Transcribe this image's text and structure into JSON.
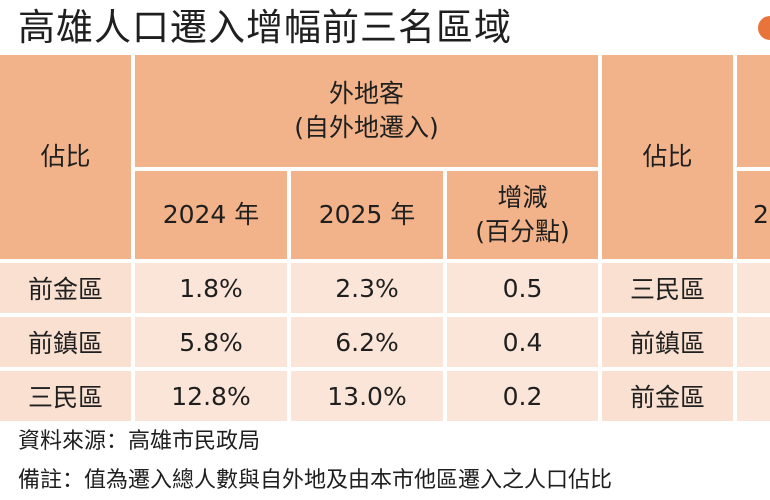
{
  "title": "高雄人口遷入增幅前三名區域",
  "table": {
    "group_header_line1": "外地客",
    "group_header_line2": "(自外地遷入)",
    "share_label": "佔比",
    "share_label_right": "佔比",
    "col_2024": "2024 年",
    "col_2025": "2025 年",
    "col_change_line1": "增減",
    "col_change_line2": "(百分點)",
    "right_partial_header": "2",
    "rows": [
      {
        "district": "前金區",
        "y2024": "1.8%",
        "y2025": "2.3%",
        "change": "0.5",
        "right_district": "三民區"
      },
      {
        "district": "前鎮區",
        "y2024": "5.8%",
        "y2025": "6.2%",
        "change": "0.4",
        "right_district": "前鎮區"
      },
      {
        "district": "三民區",
        "y2024": "12.8%",
        "y2025": "13.0%",
        "change": "0.2",
        "right_district": "前金區"
      }
    ]
  },
  "source": "資料來源：高雄市民政局",
  "note": "備註：值為遷入總人數與自外地及由本市他區遷入之人口佔比",
  "colors": {
    "header": "#f2b38a",
    "row_label": "#f9e0d1",
    "cell": "#fbe5d8",
    "logo": "#e8743b"
  }
}
